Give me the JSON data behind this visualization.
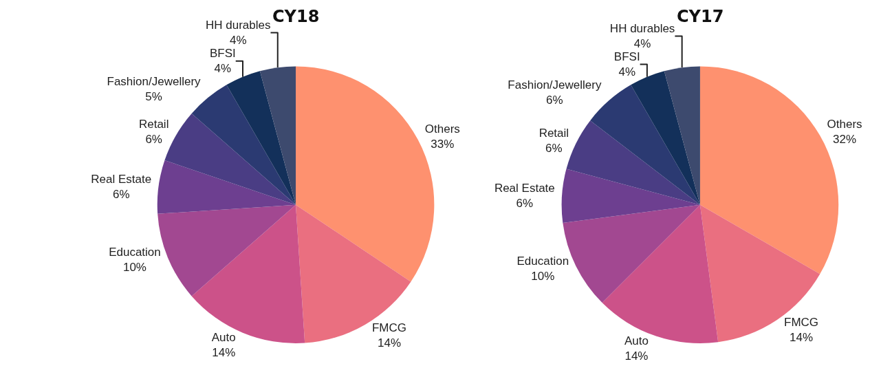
{
  "chart_data": [
    {
      "type": "pie",
      "title": "CY18",
      "categories": [
        "Others",
        "FMCG",
        "Auto",
        "Education",
        "Real Estate",
        "Retail",
        "Fashion/Jewellery",
        "BFSI",
        "HH durables"
      ],
      "values": [
        33,
        14,
        14,
        10,
        6,
        6,
        5,
        4,
        4
      ],
      "value_labels": [
        "33%",
        "14%",
        "14%",
        "10%",
        "6%",
        "6%",
        "5%",
        "4%",
        "4%"
      ],
      "colors": [
        "#fe916f",
        "#ea6f80",
        "#cc5289",
        "#a24891",
        "#6d3f90",
        "#4a3d84",
        "#2b3a72",
        "#13305a",
        "#3d4a6e"
      ]
    },
    {
      "type": "pie",
      "title": "CY17",
      "categories": [
        "Others",
        "FMCG",
        "Auto",
        "Education",
        "Real Estate",
        "Retail",
        "Fashion/Jewellery",
        "BFSI",
        "HH durables"
      ],
      "values": [
        32,
        14,
        14,
        10,
        6,
        6,
        6,
        4,
        4
      ],
      "value_labels": [
        "32%",
        "14%",
        "14%",
        "10%",
        "6%",
        "6%",
        "6%",
        "4%",
        "4%"
      ],
      "colors": [
        "#fe916f",
        "#ea6f80",
        "#cc5289",
        "#a24891",
        "#6d3f90",
        "#4a3d84",
        "#2b3a72",
        "#13305a",
        "#3d4a6e"
      ]
    }
  ]
}
